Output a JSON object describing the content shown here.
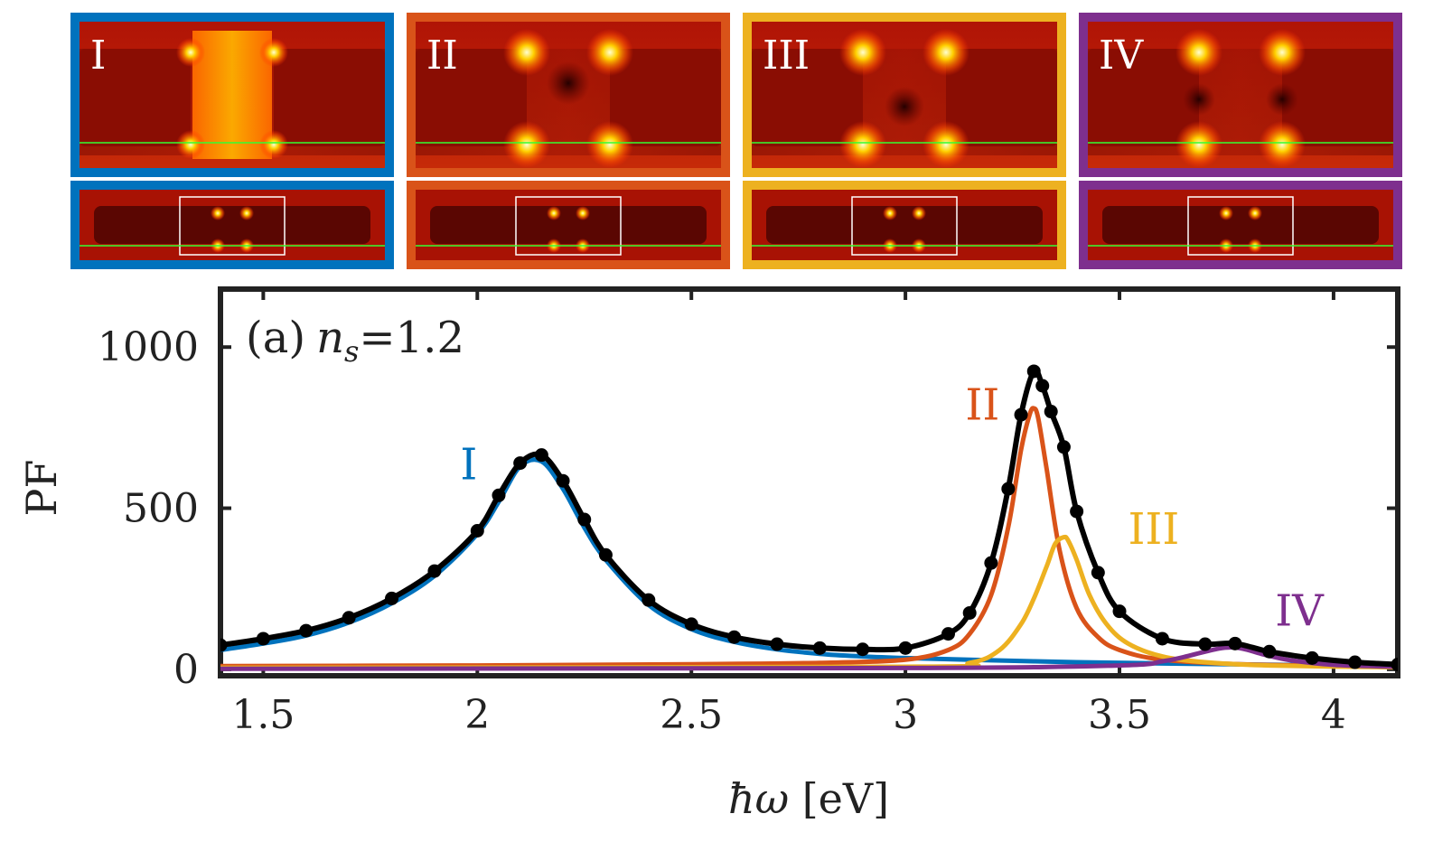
{
  "colors": {
    "I": "#0072BD",
    "II": "#D95319",
    "III": "#EDB120",
    "IV": "#7E2F8E",
    "total": "#000000",
    "monitor_line": "#33ff33"
  },
  "mode_panels": [
    {
      "label": "I",
      "color_key": "I"
    },
    {
      "label": "II",
      "color_key": "II"
    },
    {
      "label": "III",
      "color_key": "III"
    },
    {
      "label": "IV",
      "color_key": "IV"
    }
  ],
  "chart_data": {
    "type": "line",
    "title": "(a)",
    "annotation_symbol": "n",
    "annotation_subscript": "s",
    "annotation_value": "=1.2",
    "xlabel_symbol": "ħω",
    "xlabel_units": " [eV]",
    "ylabel": "PF",
    "xlim": [
      1.4,
      4.15
    ],
    "ylim": [
      -20,
      1180
    ],
    "xticks": [
      1.5,
      2,
      2.5,
      3,
      3.5,
      4
    ],
    "xtick_labels": [
      "1.5",
      "2",
      "2.5",
      "3",
      "3.5",
      "4"
    ],
    "yticks": [
      0,
      500,
      1000
    ],
    "ytick_labels": [
      "0",
      "500",
      "1000"
    ],
    "series": [
      {
        "name": "I",
        "color_key": "I",
        "x": [
          1.4,
          1.5,
          1.6,
          1.7,
          1.8,
          1.9,
          2.0,
          2.05,
          2.1,
          2.15,
          2.2,
          2.25,
          2.3,
          2.4,
          2.5,
          2.6,
          2.7,
          2.8,
          2.9,
          3.0,
          3.2,
          3.4,
          3.6,
          3.8,
          4.0,
          4.15
        ],
        "y": [
          60,
          80,
          105,
          145,
          205,
          290,
          420,
          520,
          630,
          645,
          560,
          440,
          340,
          200,
          125,
          85,
          62,
          48,
          40,
          35,
          28,
          22,
          18,
          15,
          12,
          10
        ]
      },
      {
        "name": "II",
        "color_key": "II",
        "x": [
          1.4,
          2.0,
          2.5,
          2.8,
          3.0,
          3.1,
          3.15,
          3.2,
          3.24,
          3.27,
          3.29,
          3.3,
          3.31,
          3.33,
          3.36,
          3.4,
          3.45,
          3.5,
          3.6,
          3.8,
          4.15
        ],
        "y": [
          10,
          12,
          16,
          20,
          30,
          60,
          110,
          230,
          440,
          680,
          790,
          810,
          780,
          620,
          370,
          190,
          100,
          60,
          30,
          15,
          8
        ]
      },
      {
        "name": "III",
        "color_key": "III",
        "x": [
          1.4,
          3.0,
          3.15,
          3.22,
          3.27,
          3.3,
          3.33,
          3.35,
          3.37,
          3.38,
          3.4,
          3.43,
          3.47,
          3.52,
          3.6,
          3.7,
          3.85,
          4.15
        ],
        "y": [
          5,
          8,
          20,
          60,
          140,
          220,
          320,
          390,
          410,
          400,
          340,
          230,
          140,
          80,
          40,
          22,
          12,
          6
        ]
      },
      {
        "name": "IV",
        "color_key": "IV",
        "x": [
          1.4,
          3.0,
          3.5,
          3.6,
          3.65,
          3.7,
          3.74,
          3.77,
          3.8,
          3.84,
          3.9,
          4.0,
          4.15
        ],
        "y": [
          2,
          4,
          12,
          25,
          38,
          55,
          66,
          68,
          60,
          45,
          28,
          14,
          8
        ]
      },
      {
        "name": "total",
        "color_key": "total",
        "markers": true,
        "x": [
          1.4,
          1.5,
          1.6,
          1.7,
          1.8,
          1.9,
          2.0,
          2.05,
          2.1,
          2.15,
          2.2,
          2.25,
          2.3,
          2.4,
          2.5,
          2.6,
          2.7,
          2.8,
          2.9,
          3.0,
          3.1,
          3.15,
          3.2,
          3.24,
          3.27,
          3.3,
          3.32,
          3.34,
          3.37,
          3.4,
          3.45,
          3.5,
          3.6,
          3.7,
          3.77,
          3.85,
          3.95,
          4.05,
          4.15
        ],
        "y": [
          75,
          95,
          120,
          160,
          220,
          305,
          430,
          540,
          640,
          665,
          585,
          465,
          355,
          215,
          140,
          100,
          78,
          66,
          62,
          66,
          110,
          175,
          330,
          560,
          790,
          925,
          880,
          800,
          690,
          490,
          300,
          180,
          95,
          78,
          80,
          55,
          35,
          22,
          15
        ]
      }
    ],
    "labels": [
      {
        "text": "I",
        "x": 1.98,
        "y": 590,
        "color_key": "I"
      },
      {
        "text": "II",
        "x": 3.18,
        "y": 775,
        "color_key": "II"
      },
      {
        "text": "III",
        "x": 3.58,
        "y": 390,
        "color_key": "III"
      },
      {
        "text": "IV",
        "x": 3.92,
        "y": 135,
        "color_key": "IV"
      }
    ]
  }
}
